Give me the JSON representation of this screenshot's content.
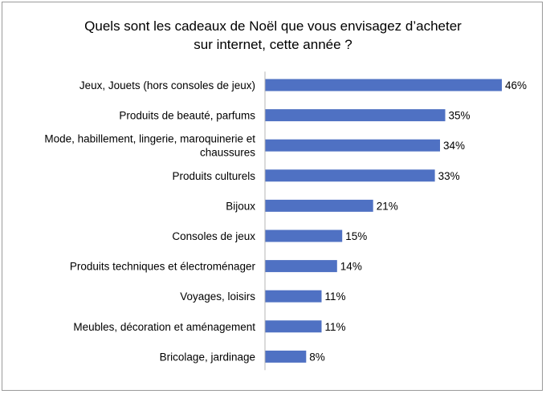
{
  "chart_data": {
    "type": "bar",
    "orientation": "horizontal",
    "title": [
      "Quels sont les cadeaux de Noël que vous envisagez d’acheter",
      "sur internet, cette année ?"
    ],
    "categories": [
      [
        "Jeux, Jouets (hors consoles de jeux)"
      ],
      [
        "Produits de beauté, parfums"
      ],
      [
        "Mode, habillement, lingerie, maroquinerie et",
        "chaussures"
      ],
      [
        "Produits culturels"
      ],
      [
        "Bijoux"
      ],
      [
        "Consoles de jeux"
      ],
      [
        "Produits techniques et électroménager"
      ],
      [
        "Voyages, loisirs"
      ],
      [
        "Meubles, décoration et aménagement"
      ],
      [
        "Bricolage, jardinage"
      ]
    ],
    "values": [
      46,
      35,
      34,
      33,
      21,
      15,
      14,
      11,
      11,
      8
    ],
    "value_labels": [
      "46%",
      "35%",
      "34%",
      "33%",
      "21%",
      "15%",
      "14%",
      "11%",
      "11%",
      "8%"
    ],
    "unit": "%",
    "xlim": [
      0,
      46
    ],
    "bar_color": "#4f71c3",
    "axis_color": "#b4b4b4",
    "grid": false,
    "legend": "none"
  }
}
